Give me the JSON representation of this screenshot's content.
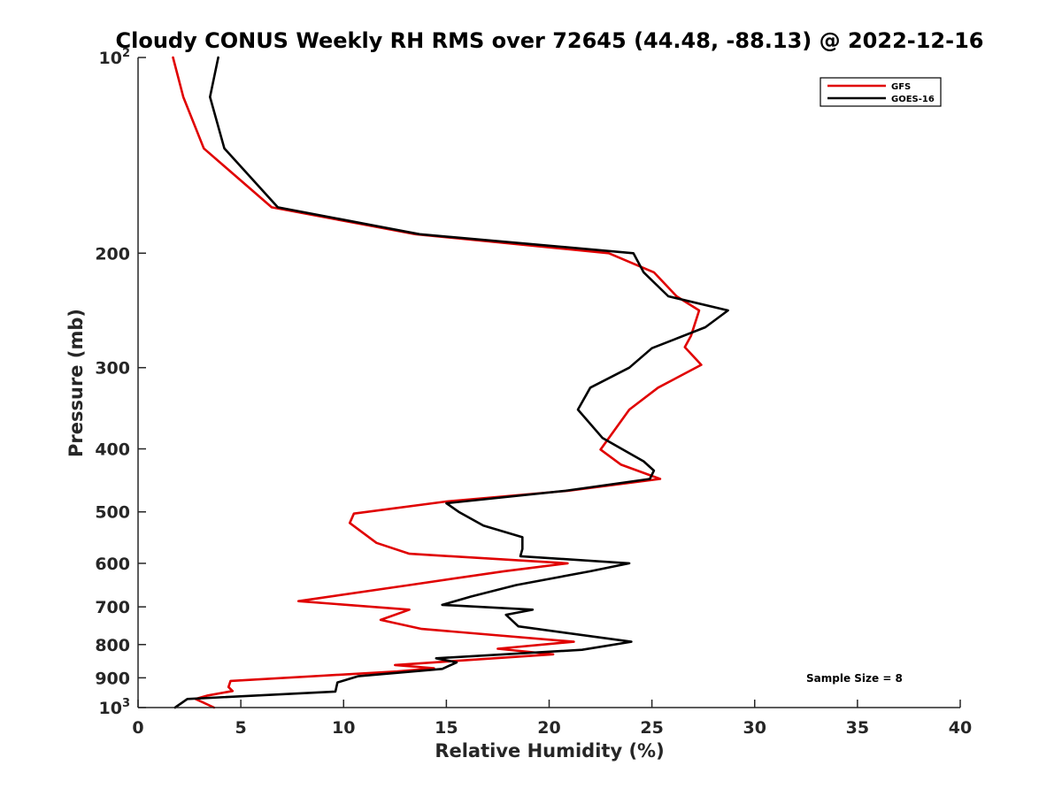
{
  "chart_data": {
    "type": "line",
    "title": "Cloudy CONUS Weekly RH RMS over 72645 (44.48, -88.13) @ 2022-12-16",
    "xlabel": "Relative Humidity (%)",
    "ylabel": "Pressure (mb)",
    "xlim": [
      0,
      40
    ],
    "ylim": [
      100,
      1000
    ],
    "y_scale": "log",
    "y_reversed": true,
    "grid": false,
    "legend_position": "top-right",
    "xticks": [
      "0",
      "5",
      "10",
      "15",
      "20",
      "25",
      "30",
      "35",
      "40"
    ],
    "yticks": [
      {
        "value": 100,
        "base": "10",
        "exp": "2"
      },
      {
        "value": 200,
        "label": "200"
      },
      {
        "value": 300,
        "label": "300"
      },
      {
        "value": 400,
        "label": "400"
      },
      {
        "value": 500,
        "label": "500"
      },
      {
        "value": 600,
        "label": "600"
      },
      {
        "value": 700,
        "label": "700"
      },
      {
        "value": 800,
        "label": "800"
      },
      {
        "value": 900,
        "label": "900"
      },
      {
        "value": 1000,
        "base": "10",
        "exp": "3"
      }
    ],
    "series": [
      {
        "name": "GFS",
        "color": "#e00000",
        "points": [
          [
            1.7,
            100
          ],
          [
            2.2,
            115
          ],
          [
            3.2,
            138
          ],
          [
            6.5,
            170
          ],
          [
            13.5,
            187
          ],
          [
            22.9,
            200
          ],
          [
            25.1,
            214
          ],
          [
            26.2,
            233
          ],
          [
            27.3,
            245
          ],
          [
            26.9,
            268
          ],
          [
            26.6,
            279
          ],
          [
            27.4,
            297
          ],
          [
            25.3,
            322
          ],
          [
            23.9,
            348
          ],
          [
            22.5,
            401
          ],
          [
            23.5,
            423
          ],
          [
            25.4,
            445
          ],
          [
            20.9,
            464
          ],
          [
            15.0,
            482
          ],
          [
            10.5,
            503
          ],
          [
            10.3,
            520
          ],
          [
            11.6,
            558
          ],
          [
            13.2,
            580
          ],
          [
            20.9,
            600
          ],
          [
            17.8,
            617
          ],
          [
            13.2,
            648
          ],
          [
            7.8,
            686
          ],
          [
            13.2,
            707
          ],
          [
            11.8,
            733
          ],
          [
            13.8,
            757
          ],
          [
            21.2,
            792
          ],
          [
            17.5,
            812
          ],
          [
            20.2,
            828
          ],
          [
            12.5,
            860
          ],
          [
            14.4,
            870
          ],
          [
            12.6,
            880
          ],
          [
            4.5,
            910
          ],
          [
            4.4,
            930
          ],
          [
            4.6,
            943
          ],
          [
            3.4,
            958
          ],
          [
            2.8,
            970
          ],
          [
            3.7,
            1000
          ]
        ]
      },
      {
        "name": "GOES-16",
        "color": "#000000",
        "points": [
          [
            3.9,
            100
          ],
          [
            3.5,
            115
          ],
          [
            4.2,
            138
          ],
          [
            6.8,
            170
          ],
          [
            13.7,
            187
          ],
          [
            24.1,
            200
          ],
          [
            24.6,
            214
          ],
          [
            25.8,
            233
          ],
          [
            28.7,
            245
          ],
          [
            27.6,
            260
          ],
          [
            25.0,
            280
          ],
          [
            23.9,
            300
          ],
          [
            22.0,
            322
          ],
          [
            21.4,
            348
          ],
          [
            22.6,
            385
          ],
          [
            24.6,
            418
          ],
          [
            25.1,
            432
          ],
          [
            24.9,
            445
          ],
          [
            20.8,
            464
          ],
          [
            15.0,
            485
          ],
          [
            15.6,
            500
          ],
          [
            16.8,
            525
          ],
          [
            18.7,
            547
          ],
          [
            18.7,
            570
          ],
          [
            18.6,
            585
          ],
          [
            23.9,
            600
          ],
          [
            22.0,
            617
          ],
          [
            18.4,
            648
          ],
          [
            16.2,
            675
          ],
          [
            14.8,
            695
          ],
          [
            19.2,
            707
          ],
          [
            17.9,
            720
          ],
          [
            18.5,
            750
          ],
          [
            24.0,
            792
          ],
          [
            21.6,
            815
          ],
          [
            14.5,
            840
          ],
          [
            15.5,
            852
          ],
          [
            14.8,
            872
          ],
          [
            10.7,
            895
          ],
          [
            9.7,
            915
          ],
          [
            9.6,
            945
          ],
          [
            2.4,
            970
          ],
          [
            1.8,
            1000
          ]
        ]
      }
    ],
    "annotation": "Sample Size = 8"
  }
}
